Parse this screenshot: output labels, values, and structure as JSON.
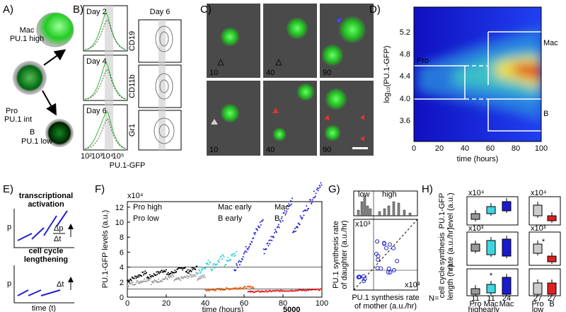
{
  "panels": {
    "A": {
      "label": "A)",
      "mac": "Mac",
      "mac_sub": "PU.1 high",
      "pro": "Pro",
      "pro_sub": "PU.1 int",
      "b": "B",
      "b_sub": "PU.1 low"
    },
    "B": {
      "label": "B)",
      "days": [
        "Day 2",
        "Day 4",
        "Day 6"
      ],
      "day6": "Day 6",
      "markers": [
        "CD19",
        "CD11b",
        "Gr1"
      ],
      "xticks": [
        "10²",
        "10³",
        "10⁴",
        "10⁵"
      ],
      "xlabel": "PU.1-GFP"
    },
    "C": {
      "label": "C)",
      "times": [
        "10",
        "40",
        "90",
        "10",
        "40",
        "90"
      ]
    },
    "D": {
      "label": "D)",
      "yticks": [
        "5.2",
        "4.8",
        "4.4",
        "4.0",
        "3.6"
      ],
      "xticks": [
        "0",
        "20",
        "40",
        "60",
        "80",
        "100"
      ],
      "xlabel": "time (hours)",
      "ylabel": "log₁₀(PU.1-GFP)",
      "mac": "Mac",
      "pro": "Pro",
      "b": "B"
    },
    "E": {
      "label": "E)",
      "title1": [
        "transcriptional",
        "activation"
      ],
      "title2": [
        "cell cycle",
        "lengthening"
      ],
      "p": "p",
      "dp": "Δp",
      "dt": "Δt",
      "dt2": "Δt",
      "xlabel": "time (t)"
    },
    "F": {
      "label": "F)",
      "scale": "x10⁴",
      "legend": [
        "Pro high",
        "Pro low",
        "Mac early",
        "B early",
        "Mac",
        "B"
      ],
      "yticks": [
        "0",
        "2",
        "4",
        "6",
        "8",
        "10",
        "12"
      ],
      "xticks": [
        "0",
        "20",
        "40",
        "60",
        "80",
        "100"
      ],
      "xlabel": "time (hours)",
      "ylabel": "PU.1-GFP levels (a.u.)",
      "note": "5000"
    },
    "G": {
      "label": "G)",
      "low": "low",
      "high": "high",
      "scale_y": "x10³",
      "scale_x": "x10³",
      "ylabel": [
        "PU.1 synthesis rate",
        "of daughter (a.u./hr)"
      ],
      "xlabel": [
        "PU.1 synthesis rate",
        "of mother (a.u./hr)"
      ]
    },
    "H": {
      "label": "H)",
      "ylabels": [
        [
          "PU.1-GFP",
          "level (a.u.)"
        ],
        [
          "synthesis",
          "rate (a.u./hr)"
        ],
        [
          "cell cycle",
          "length (hr)"
        ]
      ],
      "scales": [
        "x10⁴",
        "x10⁴",
        "x10³",
        "x10³"
      ],
      "star": "*",
      "n_label": "N=",
      "n": [
        "11",
        "11",
        "24",
        "27",
        "27"
      ],
      "categories": [
        [
          "Pro",
          "high"
        ],
        [
          "Mac",
          "early"
        ],
        [
          "Mac"
        ],
        [
          "Pro",
          "low"
        ],
        [
          "B"
        ]
      ]
    }
  }
}
